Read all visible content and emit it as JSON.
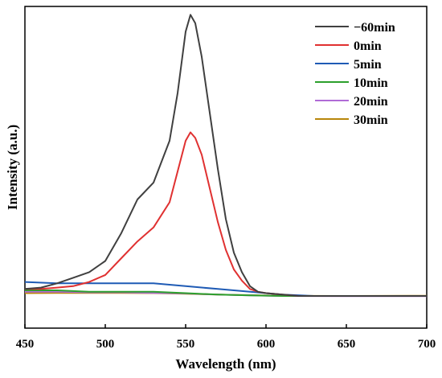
{
  "chart_data": {
    "type": "line",
    "title": "",
    "xlabel": "Wavelength (nm)",
    "ylabel": "Intensity (a.u.)",
    "xlim": [
      450,
      700
    ],
    "ylim": [
      -0.12,
      1.03
    ],
    "x_ticks": [
      450,
      500,
      550,
      600,
      650,
      700
    ],
    "x_tick_labels": [
      "450",
      "500",
      "550",
      "600",
      "650",
      "700"
    ],
    "y_ticks_shown": false,
    "grid": false,
    "legend_position": "top-right",
    "series": [
      {
        "name": "−60min",
        "color": "#404040",
        "points": [
          [
            450,
            0.02
          ],
          [
            460,
            0.025
          ],
          [
            470,
            0.04
          ],
          [
            480,
            0.06
          ],
          [
            490,
            0.08
          ],
          [
            500,
            0.12
          ],
          [
            510,
            0.22
          ],
          [
            520,
            0.34
          ],
          [
            530,
            0.4
          ],
          [
            540,
            0.55
          ],
          [
            545,
            0.72
          ],
          [
            550,
            0.94
          ],
          [
            553,
            1.0
          ],
          [
            556,
            0.97
          ],
          [
            560,
            0.85
          ],
          [
            565,
            0.65
          ],
          [
            570,
            0.45
          ],
          [
            575,
            0.27
          ],
          [
            580,
            0.15
          ],
          [
            585,
            0.08
          ],
          [
            590,
            0.03
          ],
          [
            595,
            0.01
          ],
          [
            600,
            0.005
          ],
          [
            620,
            -0.005
          ],
          [
            650,
            -0.005
          ],
          [
            680,
            -0.005
          ],
          [
            700,
            -0.005
          ]
        ]
      },
      {
        "name": "0min",
        "color": "#e03131",
        "points": [
          [
            450,
            0.02
          ],
          [
            460,
            0.02
          ],
          [
            470,
            0.025
          ],
          [
            480,
            0.03
          ],
          [
            490,
            0.045
          ],
          [
            500,
            0.07
          ],
          [
            510,
            0.13
          ],
          [
            520,
            0.19
          ],
          [
            530,
            0.24
          ],
          [
            540,
            0.33
          ],
          [
            545,
            0.44
          ],
          [
            550,
            0.55
          ],
          [
            553,
            0.58
          ],
          [
            556,
            0.56
          ],
          [
            560,
            0.5
          ],
          [
            565,
            0.38
          ],
          [
            570,
            0.26
          ],
          [
            575,
            0.16
          ],
          [
            580,
            0.09
          ],
          [
            585,
            0.05
          ],
          [
            590,
            0.02
          ],
          [
            595,
            0.01
          ],
          [
            600,
            0.005
          ],
          [
            620,
            -0.005
          ],
          [
            650,
            -0.005
          ],
          [
            680,
            -0.005
          ],
          [
            700,
            -0.005
          ]
        ]
      },
      {
        "name": "5min",
        "color": "#1f5bb5",
        "points": [
          [
            450,
            0.045
          ],
          [
            470,
            0.04
          ],
          [
            490,
            0.04
          ],
          [
            510,
            0.04
          ],
          [
            530,
            0.04
          ],
          [
            550,
            0.03
          ],
          [
            570,
            0.02
          ],
          [
            590,
            0.01
          ],
          [
            610,
            0.0
          ],
          [
            630,
            -0.005
          ],
          [
            650,
            -0.005
          ],
          [
            670,
            -0.005
          ],
          [
            700,
            -0.005
          ]
        ]
      },
      {
        "name": "10min",
        "color": "#2ca02c",
        "points": [
          [
            450,
            0.015
          ],
          [
            470,
            0.015
          ],
          [
            490,
            0.01
          ],
          [
            510,
            0.01
          ],
          [
            530,
            0.01
          ],
          [
            550,
            0.005
          ],
          [
            570,
            0.0
          ],
          [
            590,
            -0.003
          ],
          [
            610,
            -0.005
          ],
          [
            650,
            -0.005
          ],
          [
            700,
            -0.005
          ]
        ]
      },
      {
        "name": "20min",
        "color": "#b06bd6",
        "points": [
          [
            450,
            0.01
          ],
          [
            470,
            0.01
          ],
          [
            490,
            0.008
          ],
          [
            510,
            0.008
          ],
          [
            530,
            0.006
          ],
          [
            550,
            0.004
          ],
          [
            570,
            0.0
          ],
          [
            590,
            -0.003
          ],
          [
            610,
            -0.005
          ],
          [
            650,
            -0.006
          ],
          [
            700,
            -0.006
          ]
        ]
      },
      {
        "name": "30min",
        "color": "#b8860b",
        "points": [
          [
            450,
            0.005
          ],
          [
            470,
            0.006
          ],
          [
            490,
            0.006
          ],
          [
            510,
            0.006
          ],
          [
            530,
            0.005
          ],
          [
            550,
            0.003
          ],
          [
            570,
            0.0
          ],
          [
            590,
            -0.002
          ],
          [
            610,
            -0.004
          ],
          [
            650,
            -0.005
          ],
          [
            700,
            -0.004
          ]
        ]
      }
    ]
  }
}
